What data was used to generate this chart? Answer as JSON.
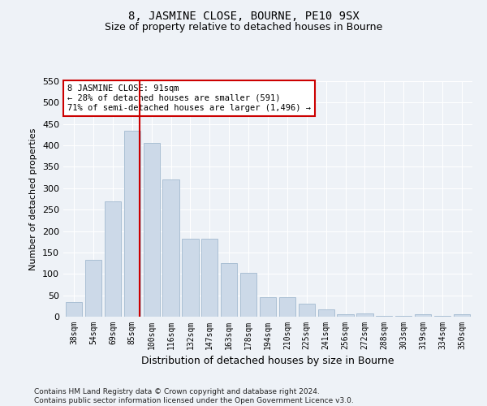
{
  "title": "8, JASMINE CLOSE, BOURNE, PE10 9SX",
  "subtitle": "Size of property relative to detached houses in Bourne",
  "xlabel": "Distribution of detached houses by size in Bourne",
  "ylabel": "Number of detached properties",
  "categories": [
    "38sqm",
    "54sqm",
    "69sqm",
    "85sqm",
    "100sqm",
    "116sqm",
    "132sqm",
    "147sqm",
    "163sqm",
    "178sqm",
    "194sqm",
    "210sqm",
    "225sqm",
    "241sqm",
    "256sqm",
    "272sqm",
    "288sqm",
    "303sqm",
    "319sqm",
    "334sqm",
    "350sqm"
  ],
  "values": [
    35,
    133,
    270,
    435,
    405,
    320,
    182,
    182,
    125,
    102,
    45,
    45,
    30,
    17,
    5,
    7,
    2,
    2,
    5,
    2,
    5
  ],
  "bar_color": "#ccd9e8",
  "bar_edge_color": "#aabfd4",
  "annotation_line1": "8 JASMINE CLOSE: 91sqm",
  "annotation_line2": "← 28% of detached houses are smaller (591)",
  "annotation_line3": "71% of semi-detached houses are larger (1,496) →",
  "annotation_box_facecolor": "#ffffff",
  "annotation_box_edgecolor": "#cc0000",
  "red_line_color": "#cc0000",
  "ylim": [
    0,
    550
  ],
  "yticks": [
    0,
    50,
    100,
    150,
    200,
    250,
    300,
    350,
    400,
    450,
    500,
    550
  ],
  "footer_line1": "Contains HM Land Registry data © Crown copyright and database right 2024.",
  "footer_line2": "Contains public sector information licensed under the Open Government Licence v3.0.",
  "bg_color": "#eef2f7",
  "grid_color": "#ffffff",
  "title_fontsize": 10,
  "subtitle_fontsize": 9,
  "ylabel_fontsize": 8,
  "xlabel_fontsize": 9
}
